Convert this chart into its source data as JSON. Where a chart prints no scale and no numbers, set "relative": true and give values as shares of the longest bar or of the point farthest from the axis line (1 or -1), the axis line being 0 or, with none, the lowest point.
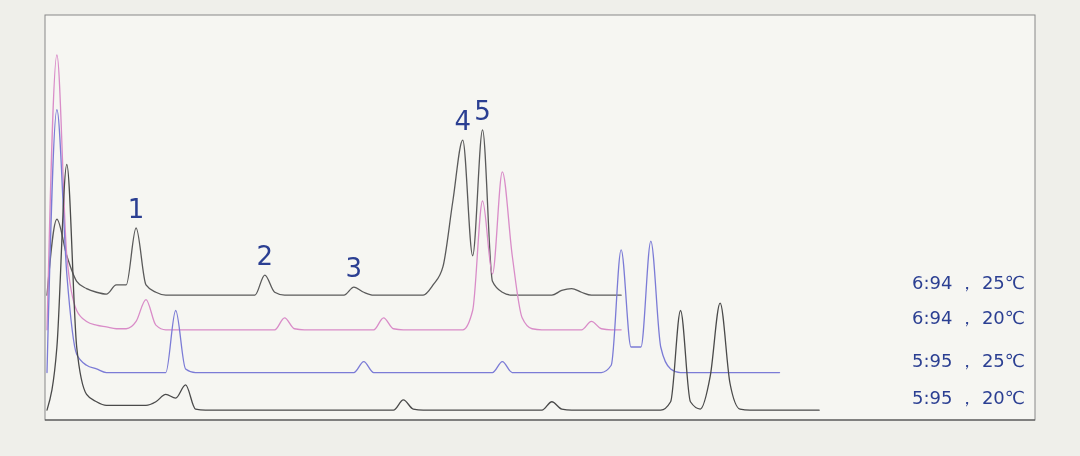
{
  "chart_data": {
    "type": "line",
    "relative": true,
    "categories": [
      null,
      null,
      null,
      null,
      null,
      null,
      null,
      null,
      null,
      null,
      null,
      null,
      null,
      null,
      null,
      null,
      null,
      null,
      null,
      null,
      null,
      null,
      null,
      null,
      null,
      null,
      null,
      null,
      null,
      null,
      null,
      null,
      null,
      null,
      null,
      null,
      null,
      null,
      null,
      null,
      null,
      null,
      null,
      null,
      null,
      null,
      null,
      null,
      null,
      null,
      null,
      null,
      null,
      null,
      null,
      null,
      null,
      null,
      null,
      null,
      null,
      null,
      null,
      null,
      null,
      null,
      null,
      null,
      null,
      null,
      null,
      null,
      null,
      null,
      null,
      null,
      null,
      null,
      null,
      null,
      null,
      null,
      null,
      null,
      null,
      null,
      null,
      null,
      null,
      null,
      null,
      null,
      null,
      null,
      null,
      null,
      null,
      null,
      null,
      null
    ],
    "series": [
      {
        "name": "6:94 ， 25℃",
        "color": "#5a5a5a",
        "values": [
          0.342,
          0.55,
          0.45,
          0.38,
          0.36,
          0.35,
          0.345,
          0.37,
          0.37,
          0.526,
          0.37,
          0.35,
          0.342,
          0.342,
          0.342,
          0.342,
          0.342,
          0.342,
          0.342,
          0.342,
          0.342,
          0.342,
          0.397,
          0.35,
          0.342,
          0.342,
          0.342,
          0.342,
          0.342,
          0.342,
          0.342,
          0.364,
          0.35,
          0.342,
          0.342,
          0.342,
          0.342,
          0.342,
          0.342,
          0.37,
          0.42,
          0.6,
          0.767,
          0.45,
          0.795,
          0.38,
          0.35,
          0.342,
          0.342,
          0.342,
          0.342,
          0.342,
          0.355,
          0.36,
          0.35,
          0.342,
          0.342,
          0.342,
          0.342,
          null,
          null,
          null,
          null,
          null,
          null,
          null,
          null,
          null,
          null,
          null,
          null,
          null,
          null,
          null,
          null,
          null,
          null,
          null,
          null,
          null,
          null,
          null,
          null,
          null,
          null,
          null,
          null,
          null,
          null,
          null,
          null,
          null,
          null,
          null,
          null,
          null,
          null,
          null,
          null,
          null
        ]
      },
      {
        "name": "6:94 ， 20℃",
        "color": "#d98cc8",
        "values": [
          0.247,
          1,
          0.45,
          0.3,
          0.27,
          0.26,
          0.255,
          0.25,
          0.25,
          0.27,
          0.33,
          0.26,
          0.247,
          0.247,
          0.247,
          0.247,
          0.247,
          0.247,
          0.247,
          0.247,
          0.247,
          0.247,
          0.247,
          0.247,
          0.28,
          0.25,
          0.247,
          0.247,
          0.247,
          0.247,
          0.247,
          0.247,
          0.247,
          0.247,
          0.28,
          0.25,
          0.247,
          0.247,
          0.247,
          0.247,
          0.247,
          0.247,
          0.247,
          0.3,
          0.6,
          0.4,
          0.68,
          0.45,
          0.28,
          0.25,
          0.247,
          0.247,
          0.247,
          0.247,
          0.247,
          0.27,
          0.25,
          0.247,
          0.247,
          null,
          null,
          null,
          null,
          null,
          null,
          null,
          null,
          null,
          null,
          null,
          null,
          null,
          null,
          null,
          null,
          null,
          null,
          null,
          null,
          null,
          null,
          null,
          null,
          null,
          null,
          null,
          null,
          null,
          null,
          null,
          null,
          null,
          null,
          null,
          null,
          null,
          null,
          null,
          null,
          null
        ]
      },
      {
        "name": "5:95 ， 25℃",
        "color": "#7b7bd6",
        "values": [
          0.13,
          0.85,
          0.4,
          0.18,
          0.15,
          0.14,
          0.13,
          0.13,
          0.13,
          0.13,
          0.13,
          0.13,
          0.13,
          0.3,
          0.14,
          0.13,
          0.13,
          0.13,
          0.13,
          0.13,
          0.13,
          0.13,
          0.13,
          0.13,
          0.13,
          0.13,
          0.13,
          0.13,
          0.13,
          0.13,
          0.13,
          0.13,
          0.16,
          0.13,
          0.13,
          0.13,
          0.13,
          0.13,
          0.13,
          0.13,
          0.13,
          0.13,
          0.13,
          0.13,
          0.13,
          0.13,
          0.16,
          0.13,
          0.13,
          0.13,
          0.13,
          0.13,
          0.13,
          0.13,
          0.13,
          0.13,
          0.13,
          0.15,
          0.466,
          0.2,
          0.2,
          0.49,
          0.2,
          0.14,
          0.13,
          0.13,
          0.13,
          0.13,
          0.13,
          0.13,
          0.13,
          0.13,
          0.13,
          0.13,
          0.13,
          null,
          null,
          null,
          null,
          null,
          null,
          null,
          null,
          null,
          null,
          null,
          null,
          null,
          null,
          null,
          null,
          null,
          null,
          null,
          null,
          null,
          null,
          null,
          null,
          null
        ]
      },
      {
        "name": "5:95 ， 20℃",
        "color": "#4a4a4a",
        "values": [
          0.027,
          0.2,
          0.7,
          0.2,
          0.07,
          0.05,
          0.04,
          0.04,
          0.04,
          0.04,
          0.04,
          0.05,
          0.07,
          0.06,
          0.096,
          0.03,
          0.027,
          0.027,
          0.027,
          0.027,
          0.027,
          0.027,
          0.027,
          0.027,
          0.027,
          0.027,
          0.027,
          0.027,
          0.027,
          0.027,
          0.027,
          0.027,
          0.027,
          0.027,
          0.027,
          0.027,
          0.055,
          0.03,
          0.027,
          0.027,
          0.027,
          0.027,
          0.027,
          0.027,
          0.027,
          0.027,
          0.027,
          0.027,
          0.027,
          0.027,
          0.027,
          0.05,
          0.03,
          0.027,
          0.027,
          0.027,
          0.027,
          0.027,
          0.027,
          0.027,
          0.027,
          0.027,
          0.027,
          0.05,
          0.3,
          0.05,
          0.03,
          0.12,
          0.32,
          0.1,
          0.03,
          0.027,
          0.027,
          0.027,
          0.027,
          0.027,
          0.027,
          0.027,
          0.027,
          null,
          null,
          null,
          null,
          null,
          null,
          null,
          null,
          null,
          null,
          null,
          null,
          null,
          null,
          null,
          null,
          null,
          null,
          null,
          null,
          null
        ]
      }
    ],
    "annotations": [
      {
        "text": "1",
        "y": 0.526
      },
      {
        "text": "2",
        "y": 0.397
      },
      {
        "text": "3",
        "y": 0.364
      },
      {
        "text": "4",
        "y": 0.767
      },
      {
        "text": "5",
        "y": 0.795
      }
    ],
    "marker": "none",
    "line_style": "solid"
  }
}
